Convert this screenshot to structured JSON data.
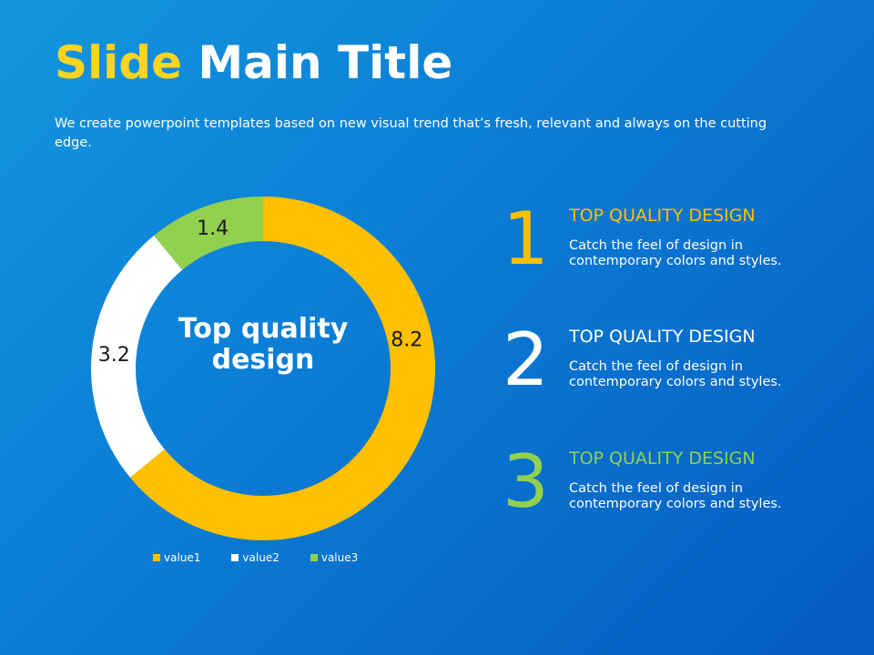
{
  "slide": {
    "title_highlight": "Slide",
    "title_rest": "Main Title",
    "subtitle": "We create powerpoint templates based on new visual trend that’s fresh, relevant and always on the cutting edge.",
    "center_text": "Top quality design"
  },
  "colors": {
    "accent_yellow": "#ffc000",
    "green": "#92d050",
    "white": "#ffffff",
    "background": "#0c7fd6"
  },
  "chart_data": {
    "type": "pie",
    "donut": true,
    "categories": [
      "value1",
      "value2",
      "value3"
    ],
    "values": [
      8.2,
      3.2,
      1.4
    ],
    "data_labels": [
      "8.2",
      "3.2",
      "1.4"
    ],
    "colors": [
      "#ffc000",
      "#ffffff",
      "#92d050"
    ],
    "legend_position": "bottom",
    "start_angle": "top, clockwise"
  },
  "features": [
    {
      "number": "1",
      "heading": "TOP QUALITY DESIGN",
      "text1": "Catch the feel of design in",
      "text2": "contemporary colors and styles.",
      "color": "#ffc000"
    },
    {
      "number": "2",
      "heading": "TOP QUALITY DESIGN",
      "text1": "Catch the feel of design in",
      "text2": "contemporary colors and styles.",
      "color": "#ffffff"
    },
    {
      "number": "3",
      "heading": "TOP QUALITY DESIGN",
      "text1": "Catch the feel of design in",
      "text2": "contemporary colors and styles.",
      "color": "#92d050"
    }
  ]
}
